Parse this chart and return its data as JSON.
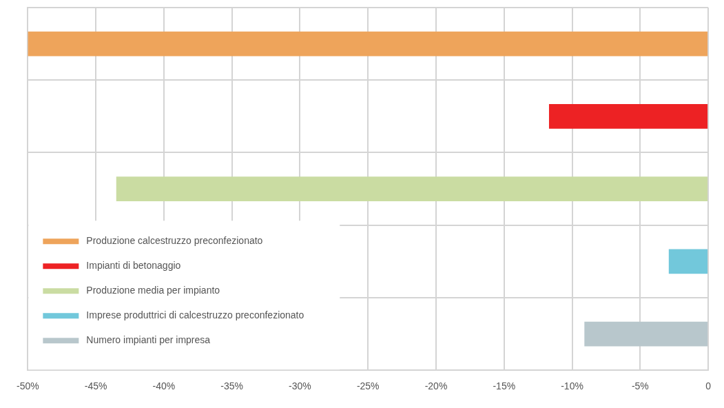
{
  "chart_data": {
    "type": "bar",
    "orientation": "horizontal",
    "categories": [
      null,
      null,
      null,
      null,
      null
    ],
    "series": [
      {
        "name": "Produzione calcestruzzo preconfezionato",
        "color": "#eea45b",
        "values": [
          -50,
          null,
          null,
          null,
          null
        ]
      },
      {
        "name": "Impianti di betonaggio",
        "color": "#ed2224",
        "values": [
          null,
          -11.7,
          null,
          null,
          null
        ]
      },
      {
        "name": "Produzione media per impianto",
        "color": "#cadca2",
        "values": [
          null,
          null,
          -43.5,
          null,
          null
        ]
      },
      {
        "name": "Imprese produttrici di calcestruzzo preconfezionato",
        "color": "#72c8db",
        "values": [
          null,
          null,
          null,
          -2.9,
          null
        ]
      },
      {
        "name": "Numero impianti per impresa",
        "color": "#b8c7cc",
        "values": [
          null,
          null,
          null,
          null,
          -9.1
        ]
      }
    ],
    "xlim": [
      -50,
      0
    ],
    "xticks": [
      {
        "value": -50,
        "label": "-50%"
      },
      {
        "value": -45,
        "label": "-45%"
      },
      {
        "value": -40,
        "label": "-40%"
      },
      {
        "value": -35,
        "label": "-35%"
      },
      {
        "value": -30,
        "label": "-30%"
      },
      {
        "value": -25,
        "label": "-25%"
      },
      {
        "value": -20,
        "label": "-20%"
      },
      {
        "value": -15,
        "label": "-15%"
      },
      {
        "value": -10,
        "label": "-10%"
      },
      {
        "value": -5,
        "label": "-5%"
      },
      0
    ],
    "grid": true,
    "legend": "bottom left"
  }
}
